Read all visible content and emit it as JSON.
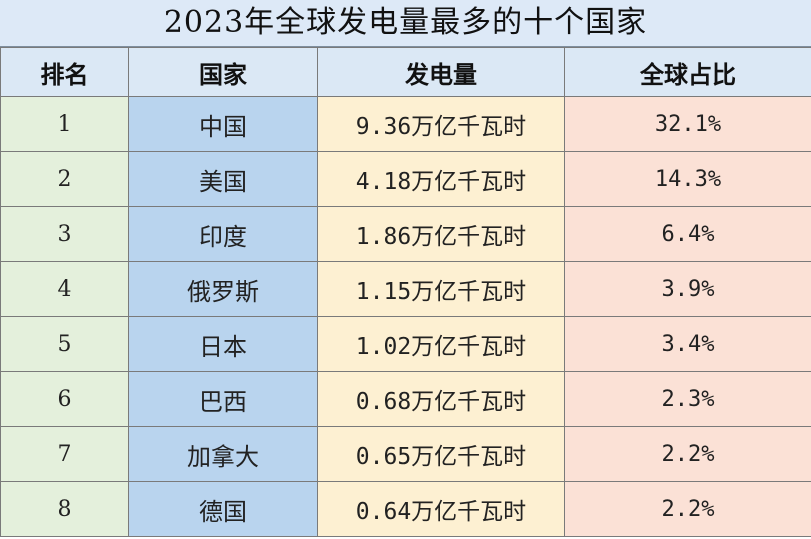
{
  "title": "2023年全球发电量最多的十个国家",
  "headers": {
    "rank": "排名",
    "country": "国家",
    "generation": "发电量",
    "share": "全球占比"
  },
  "rows": [
    {
      "rank": "1",
      "country": "中国",
      "generation": "9.36万亿千瓦时",
      "share": "32.1%"
    },
    {
      "rank": "2",
      "country": "美国",
      "generation": "4.18万亿千瓦时",
      "share": "14.3%"
    },
    {
      "rank": "3",
      "country": "印度",
      "generation": "1.86万亿千瓦时",
      "share": "6.4%"
    },
    {
      "rank": "4",
      "country": "俄罗斯",
      "generation": "1.15万亿千瓦时",
      "share": "3.9%"
    },
    {
      "rank": "5",
      "country": "日本",
      "generation": "1.02万亿千瓦时",
      "share": "3.4%"
    },
    {
      "rank": "6",
      "country": "巴西",
      "generation": "0.68万亿千瓦时",
      "share": "2.3%"
    },
    {
      "rank": "7",
      "country": "加拿大",
      "generation": "0.65万亿千瓦时",
      "share": "2.2%"
    },
    {
      "rank": "8",
      "country": "德国",
      "generation": "0.64万亿千瓦时",
      "share": "2.2%"
    }
  ],
  "colors": {
    "title_bg": "#dde9f7",
    "header_bg": "#dbe8f5",
    "rank_bg": "#e4f0dc",
    "country_bg": "#b9d4ee",
    "generation_bg": "#fdf0d2",
    "share_bg": "#fbe1d6"
  }
}
